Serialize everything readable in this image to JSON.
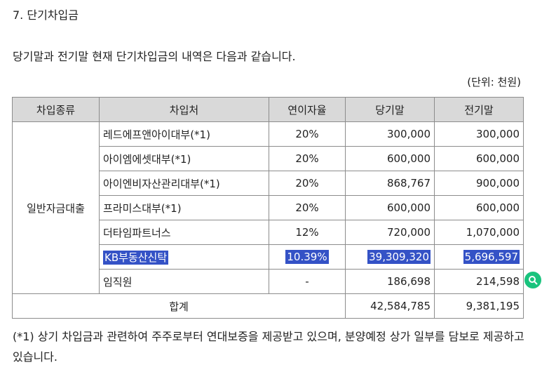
{
  "section_title": "7. 단기차입금",
  "intro": "당기말과 전기말 현재 단기차입금의 내역은 다음과 같습니다.",
  "unit": "(단위: 천원)",
  "table": {
    "headers": [
      "차입종류",
      "차입처",
      "연이자율",
      "당기말",
      "전기말"
    ],
    "group_label": "일반자금대출",
    "rows": [
      {
        "lender": "레드에프앤아이대부(*1)",
        "rate": "20%",
        "current": "300,000",
        "prior": "300,000"
      },
      {
        "lender": "아이엠에셋대부(*1)",
        "rate": "20%",
        "current": "600,000",
        "prior": "600,000"
      },
      {
        "lender": "아이엔비자산관리대부(*1)",
        "rate": "20%",
        "current": "868,767",
        "prior": "900,000"
      },
      {
        "lender": "프라미스대부(*1)",
        "rate": "20%",
        "current": "600,000",
        "prior": "600,000"
      },
      {
        "lender": "더타임파트너스",
        "rate": "12%",
        "current": "720,000",
        "prior": "1,070,000"
      },
      {
        "lender": "KB부동산신탁",
        "rate": "10.39%",
        "current": "39,309,320",
        "prior": "5,696,597"
      },
      {
        "lender": "임직원",
        "rate": "-",
        "current": "186,698",
        "prior": "214,598"
      }
    ],
    "total": {
      "label": "합계",
      "current": "42,584,785",
      "prior": "9,381,195"
    }
  },
  "footnote": "(*1) 상기 차입금과 관련하여 주주로부터 연대보증을 제공받고 있으며, 분양예정 상가 일부를 담보로 제공하고 있습니다.",
  "side_button_icon": "search-icon"
}
